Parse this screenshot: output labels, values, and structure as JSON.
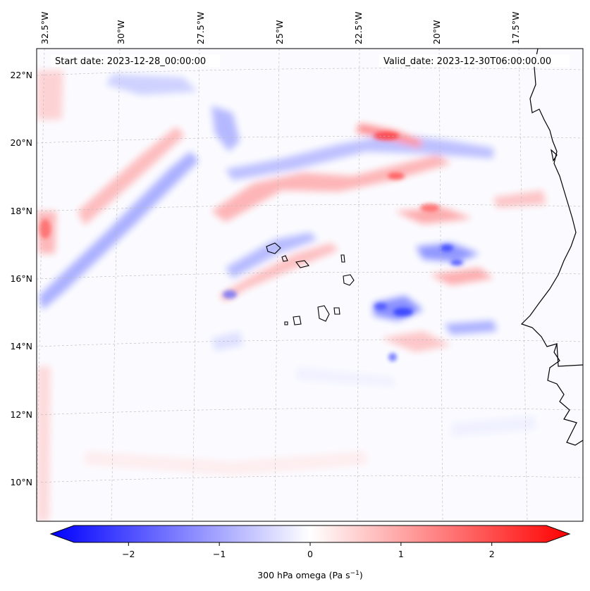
{
  "map": {
    "start_label": "Start date: 2023-12-28_00:00:00",
    "valid_label": "Valid_date: 2023-12-30T06:00:00.00",
    "lon_ticks": [
      "32.5°W",
      "30°W",
      "27.5°W",
      "25°W",
      "22.5°W",
      "20°W",
      "17.5°W"
    ],
    "lat_ticks": [
      "22°N",
      "20°N",
      "18°N",
      "16°N",
      "14°N",
      "12°N",
      "10°N"
    ],
    "field": "300 hPa omega",
    "colormap": [
      "#0000ff",
      "#ffffff",
      "#ff0000"
    ]
  },
  "colorbar": {
    "label_main": "300 hPa omega (Pa s",
    "label_exp": "−1",
    "label_close": ")",
    "ticks": [
      "−2",
      "−1",
      "0",
      "1",
      "2"
    ],
    "tick_values": [
      -2,
      -1,
      0,
      1,
      2
    ],
    "range": [
      -2.6,
      2.6
    ],
    "extend": "both"
  }
}
